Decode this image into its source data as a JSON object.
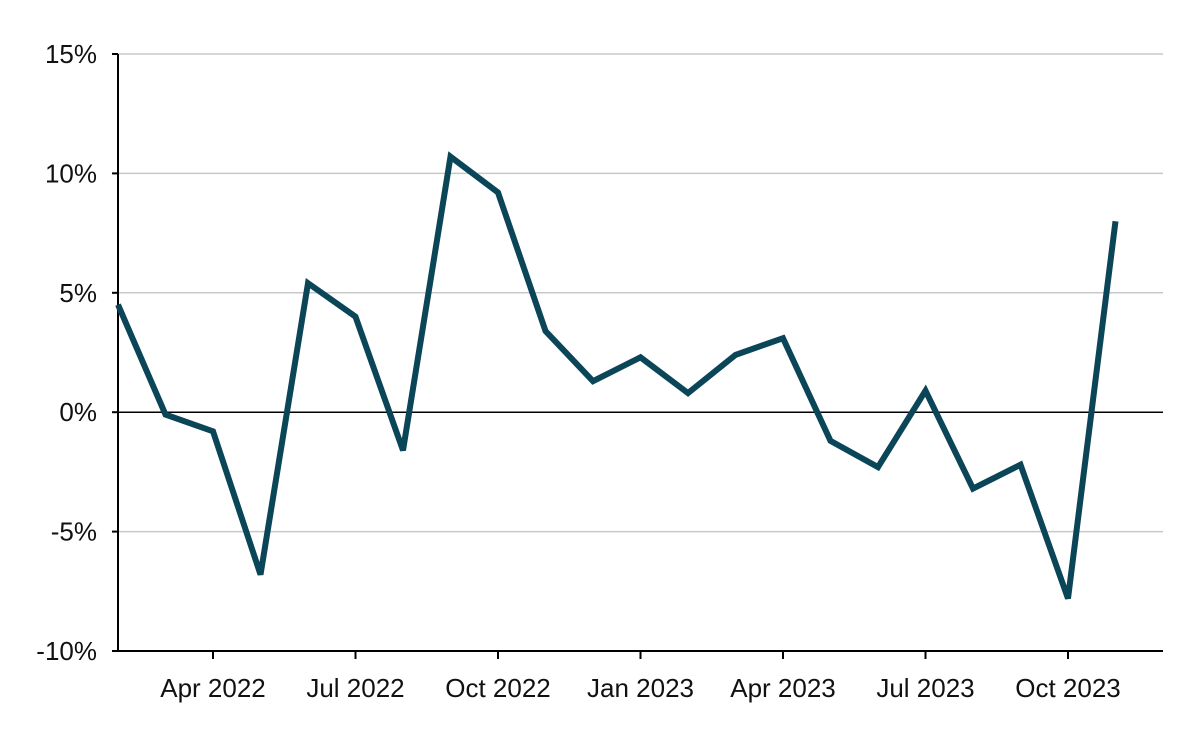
{
  "chart_data": {
    "type": "line",
    "title": "",
    "xlabel": "",
    "ylabel": "",
    "x": [
      "2022-02",
      "2022-03",
      "2022-04",
      "2022-05",
      "2022-06",
      "2022-07",
      "2022-08",
      "2022-09",
      "2022-10",
      "2022-11",
      "2022-12",
      "2023-01",
      "2023-02",
      "2023-03",
      "2023-04",
      "2023-05",
      "2023-06",
      "2023-07",
      "2023-08",
      "2023-09",
      "2023-10",
      "2023-11"
    ],
    "series": [
      {
        "color": "#0b4558",
        "values": [
          4.5,
          -0.1,
          -0.8,
          -6.8,
          5.4,
          4.0,
          -1.6,
          10.7,
          9.2,
          3.4,
          1.3,
          2.3,
          0.8,
          2.4,
          3.1,
          -1.2,
          -2.3,
          0.9,
          -3.2,
          -2.2,
          -7.8,
          8.0
        ]
      }
    ],
    "ylim": [
      -10,
      15
    ],
    "y_ticks": [
      -10,
      -5,
      0,
      5,
      10,
      15
    ],
    "y_tick_labels": [
      "-10%",
      "-5%",
      "0%",
      "5%",
      "10%",
      "15%"
    ],
    "x_ticks": [
      "2022-04",
      "2022-07",
      "2022-10",
      "2023-01",
      "2023-04",
      "2023-07",
      "2023-10"
    ],
    "x_tick_labels": [
      "Apr 2022",
      "Jul 2022",
      "Oct 2022",
      "Jan 2023",
      "Apr 2023",
      "Jul 2023",
      "Oct 2023"
    ],
    "grid": "horizontal",
    "legend": "none"
  }
}
